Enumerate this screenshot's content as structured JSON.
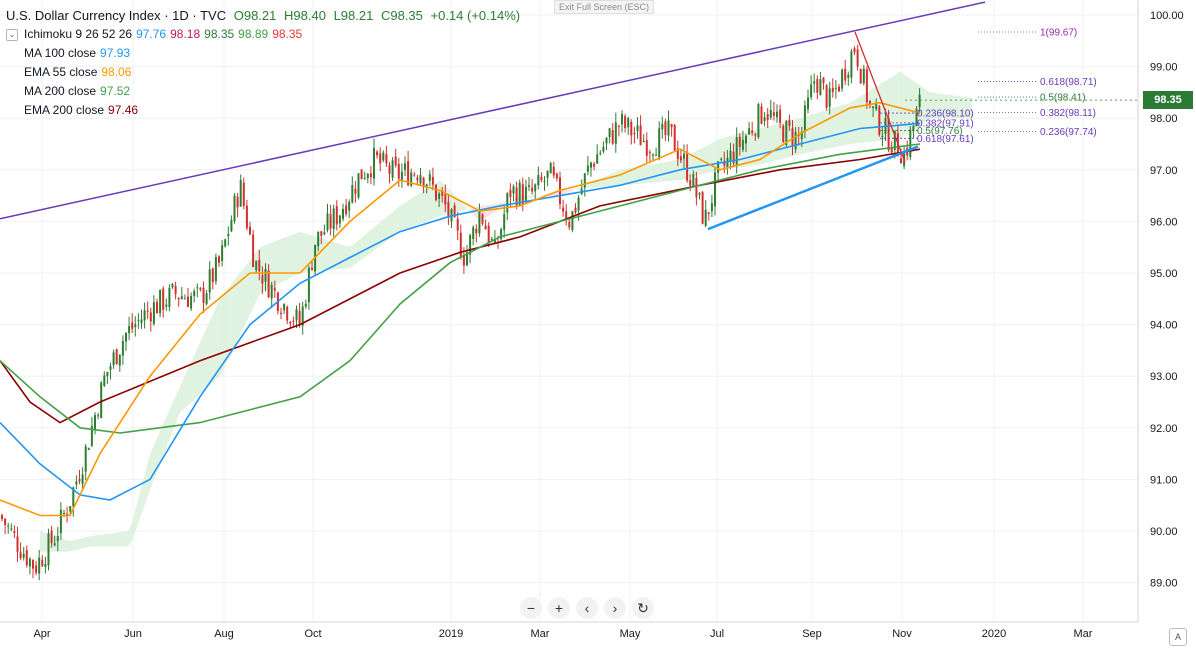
{
  "window": {
    "exit_fullscreen": "Exit Full Screen (ESC)"
  },
  "legend": {
    "title": "U.S. Dollar Currency Index · 1D · TVC",
    "ohlc": {
      "o": "O98.21",
      "h": "H98.40",
      "l": "L98.21",
      "c": "C98.35",
      "chg": "+0.14 (+0.14%)"
    },
    "indicators": [
      {
        "label": "Ichimoku 9 26 52 26",
        "values": [
          {
            "v": "97.76",
            "color": "#2196f3"
          },
          {
            "v": "98.18",
            "color": "#c2185b"
          },
          {
            "v": "98.35",
            "color": "#2e7d32"
          },
          {
            "v": "98.89",
            "color": "#43a047"
          },
          {
            "v": "98.35",
            "color": "#e53935"
          }
        ]
      },
      {
        "label": "MA 100 close",
        "values": [
          {
            "v": "97.93",
            "color": "#2196f3"
          }
        ]
      },
      {
        "label": "EMA 55 close",
        "values": [
          {
            "v": "98.06",
            "color": "#ff9800"
          }
        ]
      },
      {
        "label": "MA 200 close",
        "values": [
          {
            "v": "97.52",
            "color": "#43a047"
          }
        ]
      },
      {
        "label": "EMA 200 close",
        "values": [
          {
            "v": "97.46",
            "color": "#8b0000"
          }
        ]
      }
    ]
  },
  "price_tag": "98.35",
  "nav": {
    "zoom_out": "−",
    "zoom_in": "+",
    "back": "‹",
    "forward": "›",
    "reset": "↻"
  },
  "auto_label": "A",
  "chart_data": {
    "type": "candlestick",
    "x_ticks": [
      "Apr",
      "Jun",
      "Aug",
      "Oct",
      "2019",
      "Mar",
      "May",
      "Jul",
      "Sep",
      "Nov",
      "2020",
      "Mar"
    ],
    "y_ticks": [
      "100.00",
      "99.00",
      "98.00",
      "97.00",
      "96.00",
      "95.00",
      "94.00",
      "93.00",
      "92.00",
      "91.00",
      "90.00",
      "89.00"
    ],
    "ylim": [
      88.4,
      100.3
    ],
    "last_price": 98.35,
    "colors": {
      "up": "#2e7d32",
      "down": "#d32f2f",
      "ma100": "#2196f3",
      "ema55": "#ff9800",
      "ma200": "#43a047",
      "ema200": "#8b0000",
      "trend_upper": "#673ab7",
      "trend_lower": "#2196f3",
      "fib_red": "#d32f2f",
      "fib_purple": "#9c27b0",
      "fib_violet": "#673ab7",
      "cloud_up": "#d8efd8",
      "cloud_down": "#fadada"
    },
    "fib_left": [
      {
        "label": "0.236(98.10)",
        "value": 98.1
      },
      {
        "label": "0.382(97.91)",
        "value": 97.91
      },
      {
        "label": "0.5(97.76)",
        "value": 97.76
      },
      {
        "label": "0.618(97.61)",
        "value": 97.61
      }
    ],
    "fib_right": [
      {
        "label": "1(99.67)",
        "value": 99.67
      },
      {
        "label": "0.618(98.71)",
        "value": 98.71
      },
      {
        "label": "0.5(98.41)",
        "value": 98.41
      },
      {
        "label": "0.382(98.11)",
        "value": 98.11
      },
      {
        "label": "0.236(97.74)",
        "value": 97.74
      }
    ],
    "ema200": [
      [
        0,
        93.3
      ],
      [
        30,
        92.5
      ],
      [
        60,
        92.1
      ],
      [
        100,
        92.5
      ],
      [
        200,
        93.3
      ],
      [
        300,
        94.0
      ],
      [
        400,
        95.0
      ],
      [
        460,
        95.4
      ],
      [
        520,
        95.7
      ],
      [
        600,
        96.3
      ],
      [
        700,
        96.7
      ],
      [
        780,
        97.0
      ],
      [
        860,
        97.2
      ],
      [
        920,
        97.4
      ]
    ],
    "ema55": [
      [
        0,
        90.6
      ],
      [
        40,
        90.3
      ],
      [
        70,
        90.3
      ],
      [
        100,
        91.5
      ],
      [
        150,
        93.0
      ],
      [
        200,
        94.2
      ],
      [
        250,
        95.0
      ],
      [
        300,
        95.0
      ],
      [
        350,
        96.0
      ],
      [
        400,
        96.8
      ],
      [
        440,
        96.6
      ],
      [
        480,
        96.2
      ],
      [
        520,
        96.3
      ],
      [
        560,
        96.6
      ],
      [
        620,
        96.9
      ],
      [
        680,
        97.4
      ],
      [
        720,
        97.0
      ],
      [
        760,
        97.2
      ],
      [
        800,
        97.7
      ],
      [
        850,
        98.2
      ],
      [
        880,
        98.3
      ],
      [
        920,
        98.1
      ]
    ],
    "ma100": [
      [
        0,
        92.1
      ],
      [
        40,
        91.3
      ],
      [
        80,
        90.7
      ],
      [
        110,
        90.6
      ],
      [
        150,
        91.0
      ],
      [
        200,
        92.6
      ],
      [
        250,
        94.0
      ],
      [
        300,
        94.8
      ],
      [
        350,
        95.3
      ],
      [
        400,
        95.8
      ],
      [
        450,
        96.1
      ],
      [
        500,
        96.3
      ],
      [
        560,
        96.5
      ],
      [
        620,
        96.7
      ],
      [
        680,
        97.0
      ],
      [
        740,
        97.2
      ],
      [
        800,
        97.5
      ],
      [
        860,
        97.8
      ],
      [
        920,
        97.9
      ]
    ],
    "ma200": [
      [
        0,
        93.3
      ],
      [
        40,
        92.6
      ],
      [
        80,
        92.0
      ],
      [
        120,
        91.9
      ],
      [
        200,
        92.1
      ],
      [
        300,
        92.6
      ],
      [
        350,
        93.3
      ],
      [
        400,
        94.4
      ],
      [
        450,
        95.2
      ],
      [
        500,
        95.7
      ],
      [
        560,
        96.0
      ],
      [
        620,
        96.3
      ],
      [
        680,
        96.6
      ],
      [
        760,
        97.0
      ],
      [
        840,
        97.3
      ],
      [
        920,
        97.5
      ]
    ],
    "cloud_a": [
      [
        40,
        90.0
      ],
      [
        70,
        89.8
      ],
      [
        90,
        89.9
      ],
      [
        130,
        90.0
      ],
      [
        150,
        91.5
      ],
      [
        180,
        92.8
      ],
      [
        220,
        94.5
      ],
      [
        260,
        95.5
      ],
      [
        300,
        95.8
      ],
      [
        350,
        95.5
      ],
      [
        400,
        96.3
      ],
      [
        440,
        96.8
      ],
      [
        480,
        96.0
      ],
      [
        520,
        96.5
      ],
      [
        560,
        96.5
      ],
      [
        620,
        97.0
      ],
      [
        680,
        97.2
      ],
      [
        720,
        97.6
      ],
      [
        760,
        97.8
      ],
      [
        800,
        98.0
      ],
      [
        850,
        98.3
      ],
      [
        900,
        98.9
      ],
      [
        930,
        98.5
      ],
      [
        970,
        98.4
      ]
    ],
    "cloud_b": [
      [
        40,
        89.6
      ],
      [
        70,
        89.6
      ],
      [
        90,
        89.7
      ],
      [
        130,
        89.7
      ],
      [
        150,
        90.8
      ],
      [
        180,
        92.3
      ],
      [
        220,
        93.0
      ],
      [
        260,
        94.6
      ],
      [
        300,
        95.0
      ],
      [
        350,
        95.1
      ],
      [
        400,
        95.8
      ],
      [
        440,
        96.1
      ],
      [
        480,
        96.3
      ],
      [
        520,
        96.4
      ],
      [
        560,
        96.6
      ],
      [
        620,
        96.7
      ],
      [
        680,
        96.8
      ],
      [
        720,
        97.0
      ],
      [
        760,
        97.1
      ],
      [
        800,
        97.3
      ],
      [
        850,
        97.5
      ],
      [
        900,
        97.6
      ],
      [
        930,
        98.0
      ],
      [
        970,
        98.0
      ]
    ],
    "trendlines": [
      {
        "name": "upper",
        "x1": 0,
        "y1": 96.05,
        "x2": 985,
        "y2": 100.25
      },
      {
        "name": "lower",
        "x1": 708,
        "y1": 95.85,
        "x2": 918,
        "y2": 97.45
      }
    ],
    "fib_swing": {
      "x1": 855,
      "y1": 99.67,
      "x2": 905,
      "y2": 97.15
    }
  }
}
